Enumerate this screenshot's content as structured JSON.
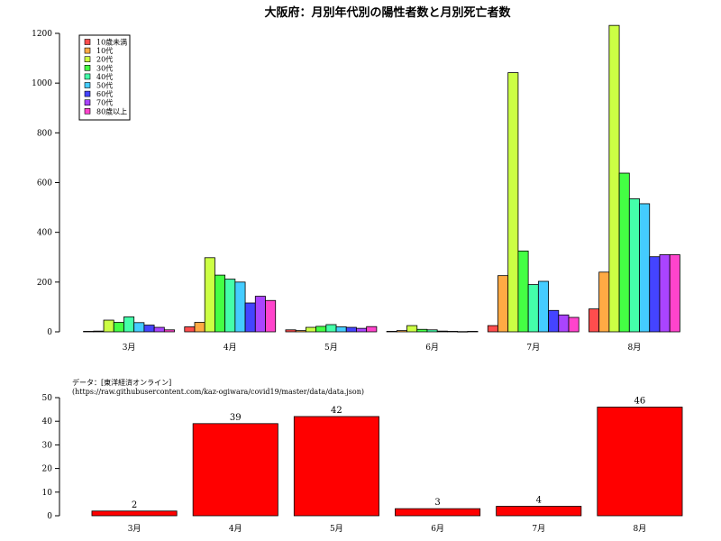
{
  "chart_data": [
    {
      "type": "bar",
      "title": "大阪府：月別年代別の陽性者数と月別死亡者数",
      "xlabel": "",
      "ylabel": "",
      "ylim": [
        0,
        1200
      ],
      "yticks": [
        0,
        200,
        400,
        600,
        800,
        1000,
        1200
      ],
      "categories": [
        "3月",
        "4月",
        "5月",
        "6月",
        "7月",
        "8月"
      ],
      "legend_position": "top-left",
      "series": [
        {
          "name": "10歳未満",
          "color": "#ff4d4d",
          "values": [
            2,
            20,
            8,
            2,
            25,
            92
          ]
        },
        {
          "name": "10代",
          "color": "#ffaa44",
          "values": [
            3,
            38,
            5,
            5,
            226,
            240
          ]
        },
        {
          "name": "20代",
          "color": "#ccff44",
          "values": [
            47,
            298,
            18,
            25,
            1042,
            1232
          ]
        },
        {
          "name": "30代",
          "color": "#44ff44",
          "values": [
            38,
            228,
            22,
            10,
            325,
            638
          ]
        },
        {
          "name": "40代",
          "color": "#44ffaa",
          "values": [
            60,
            212,
            29,
            8,
            190,
            535
          ]
        },
        {
          "name": "50代",
          "color": "#44ccff",
          "values": [
            37,
            200,
            20,
            3,
            203,
            515
          ]
        },
        {
          "name": "60代",
          "color": "#4444ff",
          "values": [
            27,
            116,
            18,
            2,
            86,
            302
          ]
        },
        {
          "name": "70代",
          "color": "#aa44ff",
          "values": [
            18,
            143,
            14,
            1,
            68,
            310
          ]
        },
        {
          "name": "80歳以上",
          "color": "#ff44cc",
          "values": [
            8,
            126,
            21,
            2,
            58,
            310
          ]
        }
      ]
    },
    {
      "type": "bar",
      "title": "",
      "xlabel": "",
      "ylabel": "",
      "ylim": [
        0,
        50
      ],
      "yticks": [
        0,
        10,
        20,
        30,
        40,
        50
      ],
      "categories": [
        "3月",
        "4月",
        "5月",
        "6月",
        "7月",
        "8月"
      ],
      "values": [
        2,
        39,
        42,
        3,
        4,
        46
      ],
      "color": "#ff0000",
      "data_labels": [
        "2",
        "39",
        "42",
        "3",
        "4",
        "46"
      ],
      "note_line1": "データ：[東洋経済オンライン]",
      "note_line2": "(https://raw.githubusercontent.com/kaz-ogiwara/covid19/master/data/data.json)"
    }
  ]
}
